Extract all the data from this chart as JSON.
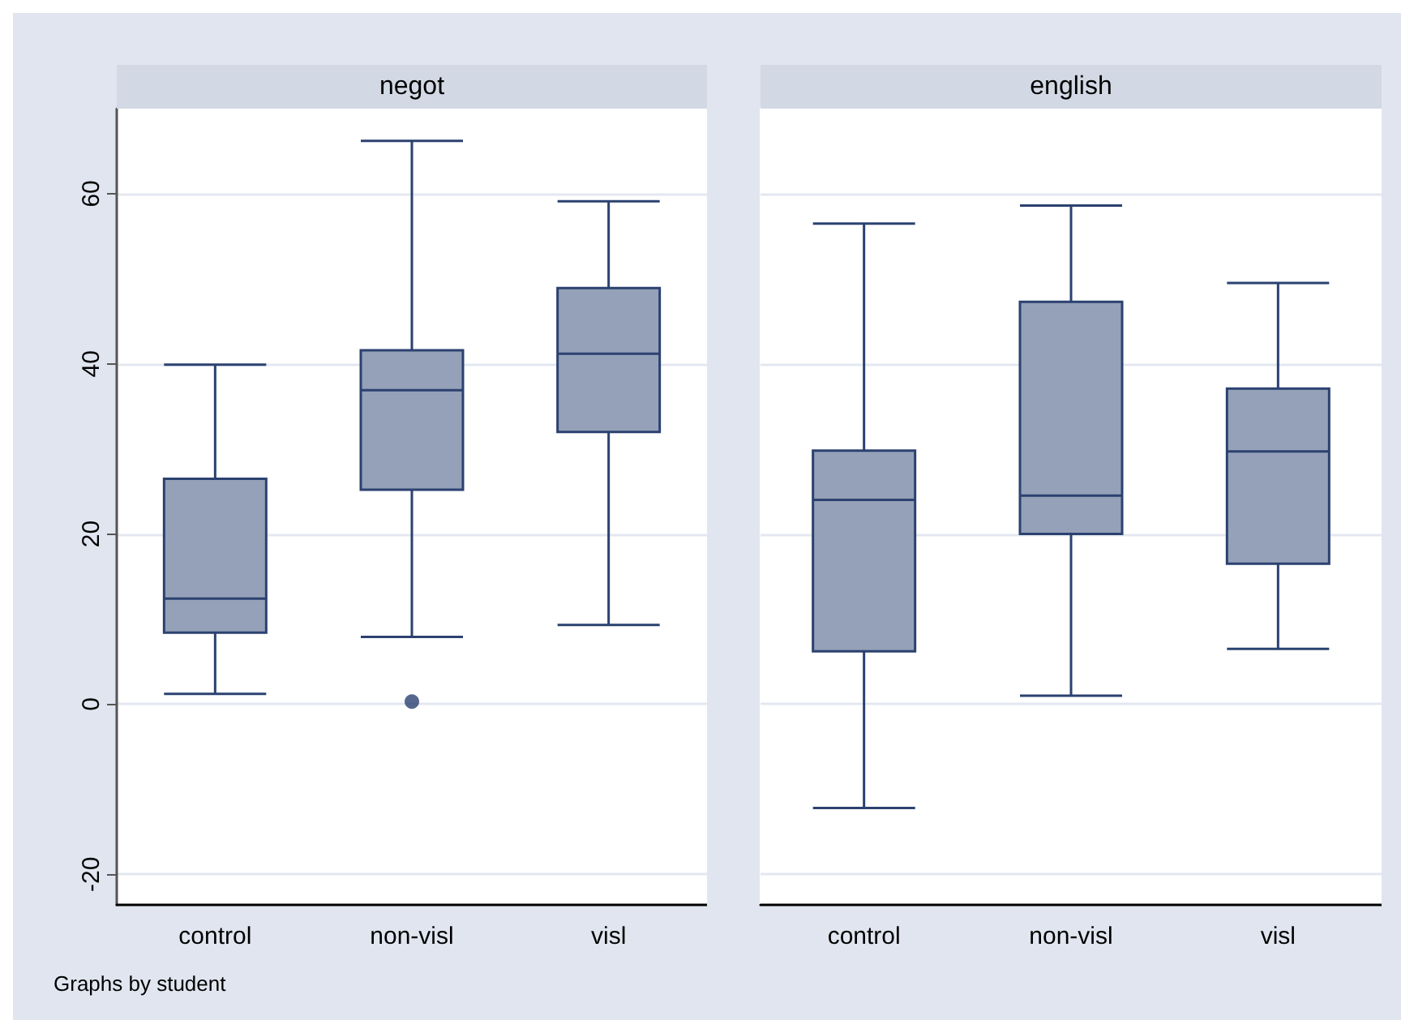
{
  "chart_data": [
    {
      "type": "box",
      "title": "negot",
      "categories": [
        "control",
        "non-visl",
        "visl"
      ],
      "color": "#95a1b8",
      "boxes": [
        {
          "low": 1.2,
          "q1": 8.4,
          "median": 12.4,
          "q3": 26.5,
          "high": 39.9
        },
        {
          "low": 7.9,
          "q1": 25.2,
          "median": 36.9,
          "q3": 41.6,
          "high": 66.2,
          "outliers": [
            0.3
          ]
        },
        {
          "low": 9.3,
          "q1": 32.0,
          "median": 41.2,
          "q3": 48.9,
          "high": 59.1
        }
      ],
      "ylim": [
        -23.6,
        70
      ],
      "yticks": [
        -20,
        0,
        20,
        40,
        60
      ],
      "grid": "y",
      "annotations": [
        "Graphs by student"
      ]
    },
    {
      "type": "box",
      "title": "english",
      "categories": [
        "control",
        "non-visl",
        "visl"
      ],
      "color": "#95a1b8",
      "boxes": [
        {
          "low": -12.2,
          "q1": 6.2,
          "median": 24.0,
          "q3": 29.8,
          "high": 56.5
        },
        {
          "low": 1.0,
          "q1": 20.0,
          "median": 24.5,
          "q3": 47.3,
          "high": 58.6
        },
        {
          "low": 6.5,
          "q1": 16.5,
          "median": 29.7,
          "q3": 37.1,
          "high": 49.5
        }
      ],
      "ylim": [
        -23.6,
        70
      ],
      "yticks": [
        -20,
        0,
        20,
        40,
        60
      ],
      "grid": "y",
      "tick_labels": "x"
    }
  ]
}
